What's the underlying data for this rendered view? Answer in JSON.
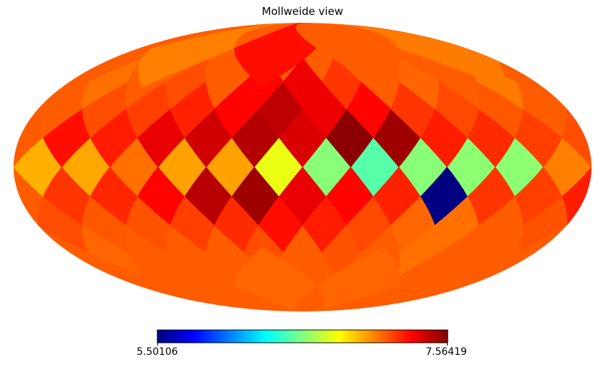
{
  "chart_data": {
    "type": "heatmap",
    "projection": "Mollweide",
    "title": "Mollweide view",
    "colormap": "jet",
    "colorbar": {
      "orientation": "horizontal",
      "placement": "bottom",
      "min_label": "5.50106",
      "max_label": "7.56419",
      "vmin": 5.50106,
      "vmax": 7.56419
    },
    "longitude_range": [
      -180,
      180
    ],
    "latitude_range": [
      -90,
      90
    ],
    "background_value": 7.12,
    "cells": [
      {
        "lon": -165,
        "lat": 0,
        "value": 6.95
      },
      {
        "lon": -135,
        "lat": 0,
        "value": 6.97
      },
      {
        "lon": -105,
        "lat": 0,
        "value": 7.08
      },
      {
        "lon": -75,
        "lat": 0,
        "value": 6.98
      },
      {
        "lon": -45,
        "lat": 0,
        "value": 6.98
      },
      {
        "lon": -15,
        "lat": 0,
        "value": 6.75
      },
      {
        "lon": 15,
        "lat": 0,
        "value": 6.55
      },
      {
        "lon": 45,
        "lat": 0,
        "value": 6.45
      },
      {
        "lon": 75,
        "lat": 0,
        "value": 6.55
      },
      {
        "lon": 105,
        "lat": 0,
        "value": 6.56
      },
      {
        "lon": 135,
        "lat": 0,
        "value": 6.56
      },
      {
        "lon": 165,
        "lat": 0,
        "value": 7.05
      },
      {
        "lon": -150,
        "lat": 15,
        "value": 7.28
      },
      {
        "lon": -120,
        "lat": 15,
        "value": 7.25
      },
      {
        "lon": -90,
        "lat": 15,
        "value": 7.35
      },
      {
        "lon": -60,
        "lat": 15,
        "value": 7.4
      },
      {
        "lon": -30,
        "lat": 15,
        "value": 7.46
      },
      {
        "lon": 0,
        "lat": 15,
        "value": 7.38
      },
      {
        "lon": 30,
        "lat": 15,
        "value": 7.54
      },
      {
        "lon": 60,
        "lat": 15,
        "value": 7.5
      },
      {
        "lon": 90,
        "lat": 15,
        "value": 7.25
      },
      {
        "lon": 120,
        "lat": 15,
        "value": 7.22
      },
      {
        "lon": 150,
        "lat": 15,
        "value": 7.18
      },
      {
        "lon": 180,
        "lat": 15,
        "value": 7.15
      },
      {
        "lon": -150,
        "lat": -15,
        "value": 7.2
      },
      {
        "lon": -120,
        "lat": -15,
        "value": 7.23
      },
      {
        "lon": -90,
        "lat": -15,
        "value": 7.3
      },
      {
        "lon": -60,
        "lat": -15,
        "value": 7.45
      },
      {
        "lon": -30,
        "lat": -15,
        "value": 7.5
      },
      {
        "lon": 0,
        "lat": -15,
        "value": 7.35
      },
      {
        "lon": 30,
        "lat": -15,
        "value": 7.3
      },
      {
        "lon": 60,
        "lat": -15,
        "value": 7.24
      },
      {
        "lon": 90,
        "lat": -15,
        "value": 5.50106
      },
      {
        "lon": 120,
        "lat": -15,
        "value": 7.2
      },
      {
        "lon": 150,
        "lat": -15,
        "value": 7.18
      },
      {
        "lon": 180,
        "lat": -15,
        "value": 7.25
      },
      {
        "lon": -165,
        "lat": 30,
        "value": 7.12
      },
      {
        "lon": -135,
        "lat": 30,
        "value": 7.15
      },
      {
        "lon": -105,
        "lat": 30,
        "value": 7.18
      },
      {
        "lon": -75,
        "lat": 30,
        "value": 7.24
      },
      {
        "lon": -45,
        "lat": 30,
        "value": 7.3
      },
      {
        "lon": -15,
        "lat": 30,
        "value": 7.44
      },
      {
        "lon": 15,
        "lat": 30,
        "value": 7.34
      },
      {
        "lon": 45,
        "lat": 30,
        "value": 7.3
      },
      {
        "lon": 75,
        "lat": 30,
        "value": 7.2
      },
      {
        "lon": 105,
        "lat": 30,
        "value": 7.16
      },
      {
        "lon": 135,
        "lat": 30,
        "value": 7.13
      },
      {
        "lon": 165,
        "lat": 30,
        "value": 7.12
      },
      {
        "lon": -165,
        "lat": -30,
        "value": 7.15
      },
      {
        "lon": -135,
        "lat": -30,
        "value": 7.13
      },
      {
        "lon": -105,
        "lat": -30,
        "value": 7.14
      },
      {
        "lon": -75,
        "lat": -30,
        "value": 7.18
      },
      {
        "lon": -45,
        "lat": -30,
        "value": 7.22
      },
      {
        "lon": -15,
        "lat": -30,
        "value": 7.28
      },
      {
        "lon": 15,
        "lat": -30,
        "value": 7.25
      },
      {
        "lon": 45,
        "lat": -30,
        "value": 7.16
      },
      {
        "lon": 75,
        "lat": -30,
        "value": 7.1
      },
      {
        "lon": 105,
        "lat": -30,
        "value": 7.08
      },
      {
        "lon": 135,
        "lat": -30,
        "value": 7.12
      },
      {
        "lon": 165,
        "lat": -30,
        "value": 7.14
      },
      {
        "lon": -150,
        "lat": 45,
        "value": 7.08
      },
      {
        "lon": -90,
        "lat": 45,
        "value": 7.15
      },
      {
        "lon": -30,
        "lat": 45,
        "value": 7.3
      },
      {
        "lon": 0,
        "lat": 45,
        "value": 7.34
      },
      {
        "lon": 30,
        "lat": 45,
        "value": 7.2
      },
      {
        "lon": 90,
        "lat": 45,
        "value": 7.1
      },
      {
        "lon": 150,
        "lat": 45,
        "value": 7.06
      },
      {
        "lon": -150,
        "lat": -45,
        "value": 7.1
      },
      {
        "lon": -90,
        "lat": -45,
        "value": 7.12
      },
      {
        "lon": -30,
        "lat": -45,
        "value": 7.15
      },
      {
        "lon": 30,
        "lat": -45,
        "value": 7.14
      },
      {
        "lon": 90,
        "lat": -45,
        "value": 7.08
      },
      {
        "lon": 150,
        "lat": -45,
        "value": 7.12
      },
      {
        "lon": -120,
        "lat": 66,
        "value": 7.05
      },
      {
        "lon": -30,
        "lat": 66,
        "value": 7.28
      },
      {
        "lon": 60,
        "lat": 66,
        "value": 7.12
      },
      {
        "lon": 150,
        "lat": 66,
        "value": 7.06
      },
      {
        "lon": -120,
        "lat": -66,
        "value": 7.12
      },
      {
        "lon": -30,
        "lat": -66,
        "value": 7.1
      },
      {
        "lon": 60,
        "lat": -66,
        "value": 7.1
      },
      {
        "lon": 150,
        "lat": -66,
        "value": 7.12
      }
    ]
  }
}
